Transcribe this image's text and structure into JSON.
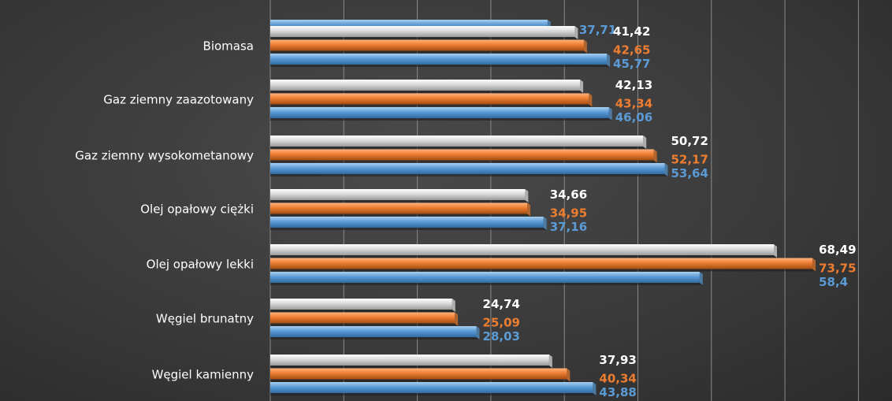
{
  "chart_data": {
    "type": "bar",
    "orientation": "horizontal",
    "categories": [
      "",
      "Biomasa",
      "Gaz ziemny zaazotowany",
      "Gaz ziemny wysokometanowy",
      "Olej opałowy ciężki",
      "Olej opałowy lekki",
      "Węgiel brunatny",
      "Węgiel kamienny"
    ],
    "series": [
      {
        "color": "#e6e6e6",
        "values": [
          null,
          41.42,
          42.13,
          50.72,
          34.66,
          68.49,
          24.74,
          37.93
        ],
        "labels": [
          "",
          "41,42",
          "42,13",
          "50,72",
          "34,66",
          "68,49",
          "24,74",
          "37,93"
        ]
      },
      {
        "color": "#ed7d31",
        "values": [
          null,
          42.65,
          43.34,
          52.17,
          34.95,
          73.75,
          25.09,
          40.34
        ],
        "labels": [
          "",
          "42,65",
          "43,34",
          "52,17",
          "34,95",
          "73,75",
          "25,09",
          "40,34"
        ]
      },
      {
        "color": "#5b9bd5",
        "values": [
          37.71,
          45.77,
          46.06,
          53.64,
          37.16,
          58.4,
          28.03,
          43.88
        ],
        "labels": [
          "37,71",
          "45,77",
          "46,06",
          "53,64",
          "37,16",
          "58,4",
          "28,03",
          "43,88"
        ]
      }
    ],
    "xlim": [
      0,
      80
    ],
    "grid_step": 10,
    "grid": true,
    "legend": "none"
  }
}
